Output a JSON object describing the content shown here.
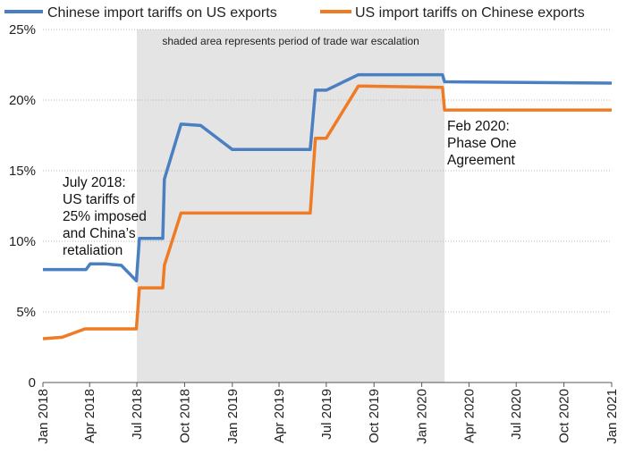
{
  "chart_data": {
    "type": "line",
    "title": "",
    "xlabel": "",
    "ylabel": "",
    "ylim": [
      0,
      25
    ],
    "y_ticks": [
      {
        "value": 0,
        "label": "0"
      },
      {
        "value": 5,
        "label": "5%"
      },
      {
        "value": 10,
        "label": "10%"
      },
      {
        "value": 15,
        "label": "15%"
      },
      {
        "value": 20,
        "label": "20%"
      },
      {
        "value": 25,
        "label": "25%"
      }
    ],
    "xlim": [
      "2018-01-01",
      "2021-01-01"
    ],
    "x_ticks": [
      {
        "date": "2018-01-01",
        "label": "Jan 2018"
      },
      {
        "date": "2018-04-01",
        "label": "Apr 2018"
      },
      {
        "date": "2018-07-01",
        "label": "Jul 2018"
      },
      {
        "date": "2018-10-01",
        "label": "Oct 2018"
      },
      {
        "date": "2019-01-01",
        "label": "Jan 2019"
      },
      {
        "date": "2019-04-01",
        "label": "Apr 2019"
      },
      {
        "date": "2019-07-01",
        "label": "Jul 2019"
      },
      {
        "date": "2019-10-01",
        "label": "Oct 2019"
      },
      {
        "date": "2020-01-01",
        "label": "Jan 2020"
      },
      {
        "date": "2020-04-01",
        "label": "Apr 2020"
      },
      {
        "date": "2020-07-01",
        "label": "Jul 2020"
      },
      {
        "date": "2020-10-01",
        "label": "Oct 2020"
      },
      {
        "date": "2021-01-01",
        "label": "Jan 2021"
      }
    ],
    "grid": "horizontal",
    "legend_position": "top",
    "series": [
      {
        "name": "Chinese import tariffs on US exports",
        "color": "#4a7fc1",
        "points": [
          {
            "x": "2018-01-01",
            "y": 8.0
          },
          {
            "x": "2018-03-25",
            "y": 8.0
          },
          {
            "x": "2018-04-02",
            "y": 8.4
          },
          {
            "x": "2018-05-01",
            "y": 8.4
          },
          {
            "x": "2018-06-01",
            "y": 8.3
          },
          {
            "x": "2018-06-30",
            "y": 7.2
          },
          {
            "x": "2018-07-06",
            "y": 10.2
          },
          {
            "x": "2018-08-20",
            "y": 10.2
          },
          {
            "x": "2018-08-23",
            "y": 14.4
          },
          {
            "x": "2018-09-24",
            "y": 18.3
          },
          {
            "x": "2018-11-01",
            "y": 18.2
          },
          {
            "x": "2019-01-01",
            "y": 16.5
          },
          {
            "x": "2019-05-31",
            "y": 16.5
          },
          {
            "x": "2019-06-10",
            "y": 20.7
          },
          {
            "x": "2019-07-01",
            "y": 20.7
          },
          {
            "x": "2019-09-01",
            "y": 21.8
          },
          {
            "x": "2020-02-10",
            "y": 21.8
          },
          {
            "x": "2020-02-14",
            "y": 21.3
          },
          {
            "x": "2021-01-01",
            "y": 21.2
          }
        ]
      },
      {
        "name": "US import tariffs on Chinese exports",
        "color": "#ef7b24",
        "points": [
          {
            "x": "2018-01-01",
            "y": 3.1
          },
          {
            "x": "2018-02-07",
            "y": 3.2
          },
          {
            "x": "2018-03-23",
            "y": 3.8
          },
          {
            "x": "2018-06-30",
            "y": 3.8
          },
          {
            "x": "2018-07-06",
            "y": 6.7
          },
          {
            "x": "2018-08-20",
            "y": 6.7
          },
          {
            "x": "2018-08-23",
            "y": 8.3
          },
          {
            "x": "2018-09-24",
            "y": 12.0
          },
          {
            "x": "2019-01-01",
            "y": 12.0
          },
          {
            "x": "2019-05-31",
            "y": 12.0
          },
          {
            "x": "2019-06-10",
            "y": 17.3
          },
          {
            "x": "2019-07-01",
            "y": 17.3
          },
          {
            "x": "2019-09-01",
            "y": 21.0
          },
          {
            "x": "2020-02-10",
            "y": 20.9
          },
          {
            "x": "2020-02-14",
            "y": 19.3
          },
          {
            "x": "2021-01-01",
            "y": 19.3
          }
        ]
      }
    ],
    "shaded_region": {
      "x_start": "2018-07-01",
      "x_end": "2020-02-14",
      "label": "shaded area represents period of trade war escalation",
      "color": "#e4e4e4"
    },
    "annotations": [
      {
        "lines": [
          "July 2018:",
          "US tariffs of",
          "25% imposed",
          "and China’s",
          "retaliation"
        ]
      },
      {
        "lines": [
          "Feb 2020:",
          "Phase One",
          "Agreement"
        ]
      }
    ]
  }
}
